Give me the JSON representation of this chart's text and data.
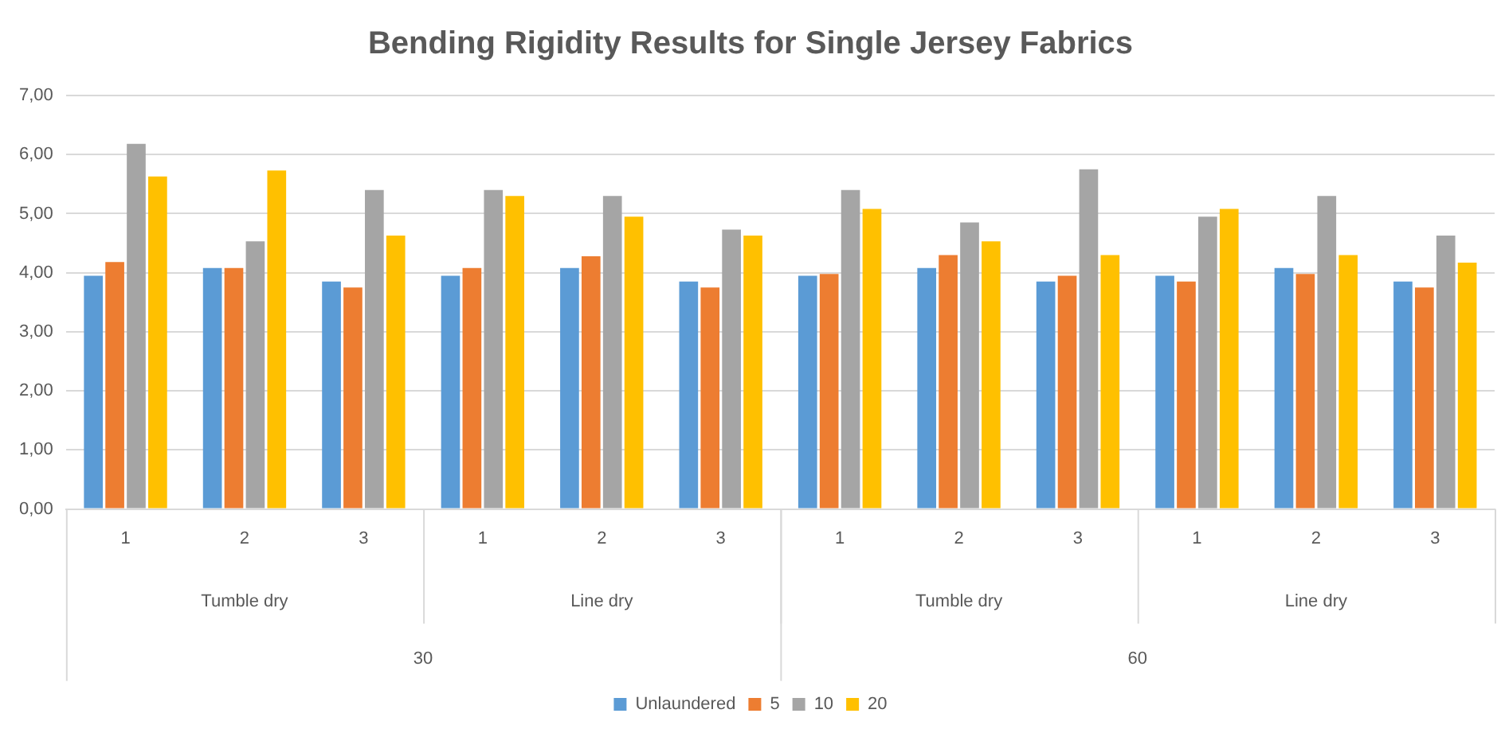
{
  "chart_data": {
    "type": "bar",
    "title": "Bending Rigidity Results for Single Jersey Fabrics",
    "categories": [
      "1",
      "2",
      "3",
      "1",
      "2",
      "3",
      "1",
      "2",
      "3",
      "1",
      "2",
      "3"
    ],
    "series": [
      {
        "name": "Unlaundered",
        "color": "#5b9bd5",
        "values": [
          3.95,
          4.08,
          3.85,
          3.95,
          4.08,
          3.85,
          3.95,
          4.08,
          3.85,
          3.95,
          4.08,
          3.85
        ]
      },
      {
        "name": "5",
        "color": "#ed7d31",
        "values": [
          4.18,
          4.08,
          3.75,
          4.08,
          4.28,
          3.75,
          3.98,
          4.3,
          3.95,
          3.85,
          3.98,
          3.75
        ]
      },
      {
        "name": "10",
        "color": "#a5a5a5",
        "values": [
          6.18,
          4.53,
          5.4,
          5.4,
          5.3,
          4.73,
          5.4,
          4.85,
          5.75,
          4.95,
          5.3,
          4.63
        ]
      },
      {
        "name": "20",
        "color": "#ffc000",
        "values": [
          5.63,
          5.73,
          4.63,
          5.3,
          4.95,
          4.63,
          5.08,
          4.53,
          4.3,
          5.08,
          4.3,
          4.17
        ]
      }
    ],
    "annotations": [
      "Tumble dry",
      "Line dry",
      "Tumble dry",
      "Line dry",
      "30",
      "60"
    ],
    "ylim": [
      0,
      7
    ],
    "yticks": [
      {
        "value": 0,
        "label": "0,00"
      },
      {
        "value": 1,
        "label": "1,00"
      },
      {
        "value": 2,
        "label": "2,00"
      },
      {
        "value": 3,
        "label": "3,00"
      },
      {
        "value": 4,
        "label": "4,00"
      },
      {
        "value": 5,
        "label": "5,00"
      },
      {
        "value": 6,
        "label": "6,00"
      },
      {
        "value": 7,
        "label": "7,00"
      }
    ],
    "grid": "y",
    "legend": "bottom"
  }
}
